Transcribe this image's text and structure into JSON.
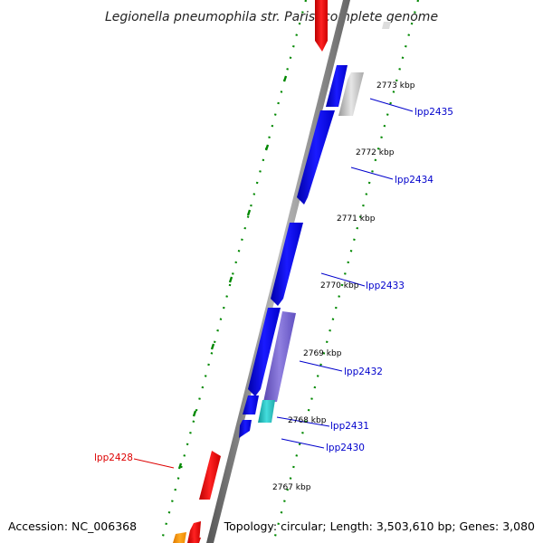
{
  "title": "Legionella pneumophila str. Paris, complete genome",
  "footer": {
    "accession": "Accession: NC_006368",
    "summary": "Topology: circular; Length: 3,503,610 bp; Genes: 3,080"
  },
  "ticks": [
    "2767 kbp",
    "2768 kbp",
    "2769 kbp",
    "2770 kbp",
    "2771 kbp",
    "2772 kbp",
    "2773 kbp"
  ],
  "gene_labels": [
    {
      "id": "lpp2435",
      "text": "lpp2435",
      "color": "#0000cc"
    },
    {
      "id": "lpp2434",
      "text": "lpp2434",
      "color": "#0000cc"
    },
    {
      "id": "lpp2433",
      "text": "lpp2433",
      "color": "#0000cc"
    },
    {
      "id": "lpp2432",
      "text": "lpp2432",
      "color": "#0000cc"
    },
    {
      "id": "lpp2431",
      "text": "lpp2431",
      "color": "#0000cc"
    },
    {
      "id": "lpp2430",
      "text": "lpp2430",
      "color": "#0000cc"
    },
    {
      "id": "lpp2428",
      "text": "lpp2428",
      "color": "#dd0000"
    }
  ],
  "colors": {
    "backbone": "#888888",
    "blue": "#0000ee",
    "red": "#ee0000",
    "grey": "#bbbbbb",
    "purple": "#7060cc",
    "cyan": "#22bbbb",
    "orange": "#ff9900",
    "tick_green": "#008800"
  }
}
